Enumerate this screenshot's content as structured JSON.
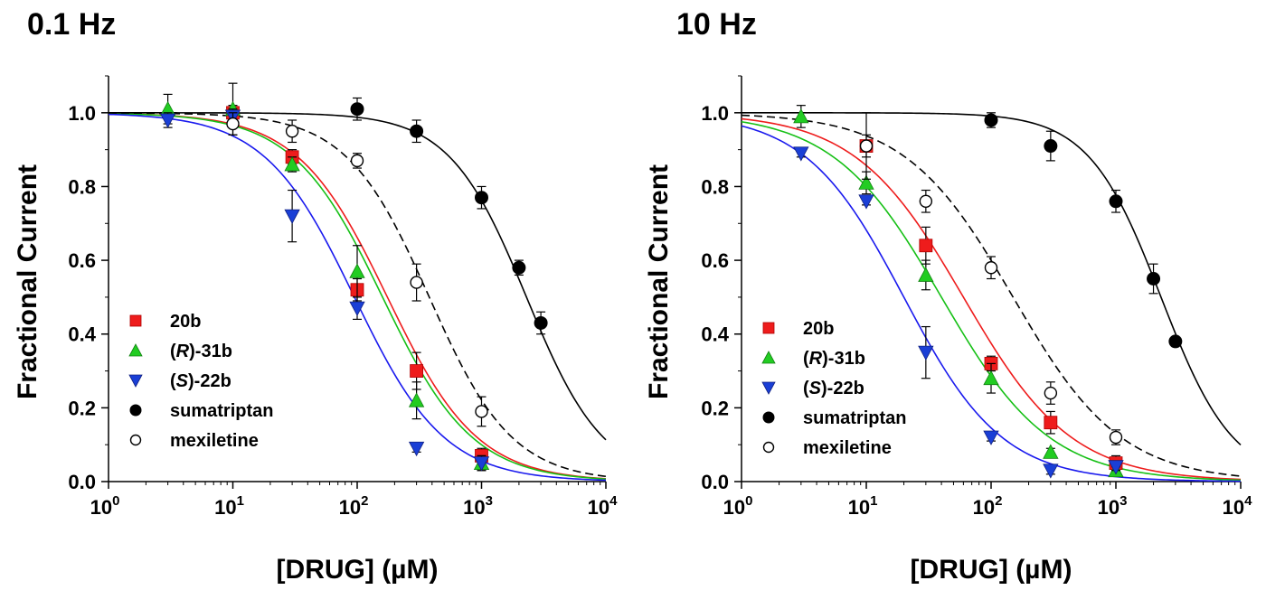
{
  "chart_data": [
    {
      "type": "scatter",
      "title": "0.1 Hz",
      "xlabel": "[DRUG] (µM)",
      "ylabel": "Fractional Current",
      "xscale": "log",
      "xlim": [
        1,
        10000
      ],
      "ylim": [
        0,
        1.1
      ],
      "xticks": [
        {
          "base": "10",
          "exp": "0",
          "value": 1
        },
        {
          "base": "10",
          "exp": "1",
          "value": 10
        },
        {
          "base": "10",
          "exp": "2",
          "value": 100
        },
        {
          "base": "10",
          "exp": "3",
          "value": 1000
        },
        {
          "base": "10",
          "exp": "4",
          "value": 10000
        }
      ],
      "yticks": [
        "0.0",
        "0.2",
        "0.4",
        "0.6",
        "0.8",
        "1.0"
      ],
      "legend_position": "bottom-left",
      "series": [
        {
          "name": "20b",
          "marker": "square",
          "color": "#ee1c1c",
          "fit_color": "#ee1c1c",
          "fit_dash": false,
          "ic50": 175,
          "hill": 1.2,
          "points": [
            {
              "x": 10,
              "y": 1.0,
              "err": 0.02
            },
            {
              "x": 30,
              "y": 0.88,
              "err": 0.02
            },
            {
              "x": 100,
              "y": 0.52,
              "err": 0.03
            },
            {
              "x": 300,
              "y": 0.3,
              "err": 0.05
            },
            {
              "x": 1000,
              "y": 0.07,
              "err": 0.02
            }
          ]
        },
        {
          "name": "(R)-31b",
          "italic_part": "R",
          "marker": "triangle-up",
          "color": "#22cc22",
          "fit_color": "#16c016",
          "fit_dash": false,
          "ic50": 160,
          "hill": 1.2,
          "points": [
            {
              "x": 3,
              "y": 1.01,
              "err": 0.04
            },
            {
              "x": 10,
              "y": 1.01,
              "err": 0.07
            },
            {
              "x": 30,
              "y": 0.86,
              "err": 0.02
            },
            {
              "x": 100,
              "y": 0.57,
              "err": 0.07
            },
            {
              "x": 300,
              "y": 0.22,
              "err": 0.05
            },
            {
              "x": 1000,
              "y": 0.05,
              "err": 0.02
            }
          ]
        },
        {
          "name": "(S)-22b",
          "italic_part": "S",
          "marker": "triangle-down",
          "color": "#1a3fd6",
          "fit_color": "#1a1aee",
          "fit_dash": false,
          "ic50": 95,
          "hill": 1.2,
          "points": [
            {
              "x": 3,
              "y": 0.98,
              "err": 0.02
            },
            {
              "x": 10,
              "y": 0.99,
              "err": 0.02
            },
            {
              "x": 30,
              "y": 0.72,
              "err": 0.07
            },
            {
              "x": 100,
              "y": 0.47,
              "err": 0.03
            },
            {
              "x": 300,
              "y": 0.09,
              "err": 0.01
            },
            {
              "x": 1000,
              "y": 0.05,
              "err": 0.02
            }
          ]
        },
        {
          "name": "sumatriptan",
          "marker": "circle-filled",
          "color": "#000000",
          "fit_color": "#000000",
          "fit_dash": false,
          "ic50": 2300,
          "hill": 1.4,
          "points": [
            {
              "x": 100,
              "y": 1.01,
              "err": 0.03
            },
            {
              "x": 300,
              "y": 0.95,
              "err": 0.03
            },
            {
              "x": 1000,
              "y": 0.77,
              "err": 0.03
            },
            {
              "x": 2000,
              "y": 0.58,
              "err": 0.02
            },
            {
              "x": 3000,
              "y": 0.43,
              "err": 0.03
            }
          ]
        },
        {
          "name": "mexiletine",
          "marker": "circle-open",
          "color": "#000000",
          "fit_color": "#000000",
          "fit_dash": true,
          "ic50": 380,
          "hill": 1.3,
          "points": [
            {
              "x": 10,
              "y": 0.97,
              "err": 0.03
            },
            {
              "x": 30,
              "y": 0.95,
              "err": 0.03
            },
            {
              "x": 100,
              "y": 0.87,
              "err": 0.02
            },
            {
              "x": 300,
              "y": 0.54,
              "err": 0.05
            },
            {
              "x": 1000,
              "y": 0.19,
              "err": 0.04
            }
          ]
        }
      ]
    },
    {
      "type": "scatter",
      "title": "10 Hz",
      "xlabel": "[DRUG] (µM)",
      "ylabel": "Fractional Current",
      "xscale": "log",
      "xlim": [
        1,
        10000
      ],
      "ylim": [
        0,
        1.1
      ],
      "xticks": [
        {
          "base": "10",
          "exp": "0",
          "value": 1
        },
        {
          "base": "10",
          "exp": "1",
          "value": 10
        },
        {
          "base": "10",
          "exp": "2",
          "value": 100
        },
        {
          "base": "10",
          "exp": "3",
          "value": 1000
        },
        {
          "base": "10",
          "exp": "4",
          "value": 10000
        }
      ],
      "yticks": [
        "0.0",
        "0.2",
        "0.4",
        "0.6",
        "0.8",
        "1.0"
      ],
      "legend_position": "bottom-left",
      "series": [
        {
          "name": "20b",
          "marker": "square",
          "color": "#ee1c1c",
          "fit_color": "#ee1c1c",
          "fit_dash": false,
          "ic50": 60,
          "hill": 1.0,
          "points": [
            {
              "x": 10,
              "y": 0.91,
              "err": 0.03
            },
            {
              "x": 30,
              "y": 0.64,
              "err": 0.05
            },
            {
              "x": 100,
              "y": 0.32,
              "err": 0.02
            },
            {
              "x": 300,
              "y": 0.16,
              "err": 0.03
            },
            {
              "x": 1000,
              "y": 0.05,
              "err": 0.02
            }
          ]
        },
        {
          "name": "(R)-31b",
          "italic_part": "R",
          "marker": "triangle-up",
          "color": "#22cc22",
          "fit_color": "#16c016",
          "fit_dash": false,
          "ic50": 40,
          "hill": 1.0,
          "points": [
            {
              "x": 3,
              "y": 0.99,
              "err": 0.03
            },
            {
              "x": 10,
              "y": 0.81,
              "err": 0.03
            },
            {
              "x": 30,
              "y": 0.56,
              "err": 0.04
            },
            {
              "x": 100,
              "y": 0.28,
              "err": 0.04
            },
            {
              "x": 300,
              "y": 0.08,
              "err": 0.01
            },
            {
              "x": 1000,
              "y": 0.03,
              "err": 0.01
            }
          ]
        },
        {
          "name": "(S)-22b",
          "italic_part": "S",
          "marker": "triangle-down",
          "color": "#1a3fd6",
          "fit_color": "#1a1aee",
          "fit_dash": false,
          "ic50": 20,
          "hill": 1.1,
          "points": [
            {
              "x": 3,
              "y": 0.89,
              "err": 0.01
            },
            {
              "x": 10,
              "y": 0.76,
              "err": 0.01
            },
            {
              "x": 30,
              "y": 0.35,
              "err": 0.07
            },
            {
              "x": 100,
              "y": 0.12,
              "err": 0.01
            },
            {
              "x": 300,
              "y": 0.03,
              "err": 0.01
            },
            {
              "x": 1000,
              "y": 0.04,
              "err": 0.01
            }
          ]
        },
        {
          "name": "sumatriptan",
          "marker": "circle-filled",
          "color": "#000000",
          "fit_color": "#000000",
          "fit_dash": false,
          "ic50": 2300,
          "hill": 1.5,
          "points": [
            {
              "x": 100,
              "y": 0.98,
              "err": 0.02
            },
            {
              "x": 300,
              "y": 0.91,
              "err": 0.04
            },
            {
              "x": 1000,
              "y": 0.76,
              "err": 0.03
            },
            {
              "x": 2000,
              "y": 0.55,
              "err": 0.04
            },
            {
              "x": 3000,
              "y": 0.38,
              "err": 0.01
            }
          ]
        },
        {
          "name": "mexiletine",
          "marker": "circle-open",
          "color": "#000000",
          "fit_color": "#000000",
          "fit_dash": true,
          "ic50": 150,
          "hill": 1.0,
          "points": [
            {
              "x": 10,
              "y": 0.91,
              "err": 0.09
            },
            {
              "x": 30,
              "y": 0.76,
              "err": 0.03
            },
            {
              "x": 100,
              "y": 0.58,
              "err": 0.03
            },
            {
              "x": 300,
              "y": 0.24,
              "err": 0.03
            },
            {
              "x": 1000,
              "y": 0.12,
              "err": 0.02
            }
          ]
        }
      ]
    }
  ]
}
